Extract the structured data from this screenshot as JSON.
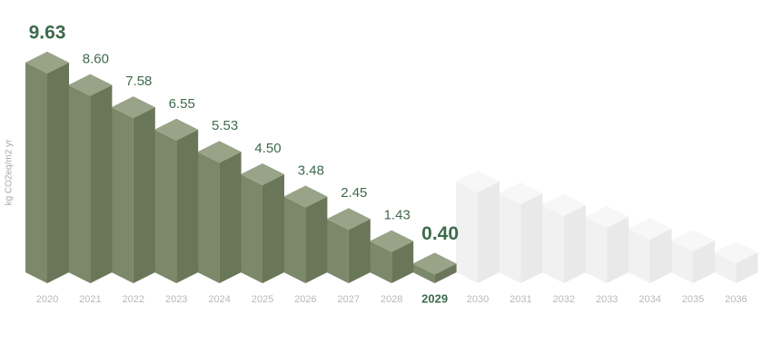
{
  "chart_data": {
    "type": "bar3d",
    "y_label": "kg CO2eq/m2 yr",
    "categories": [
      "2020",
      "2021",
      "2022",
      "2023",
      "2024",
      "2025",
      "2026",
      "2027",
      "2028",
      "2029",
      "2030",
      "2031",
      "2032",
      "2033",
      "2034",
      "2035",
      "2036"
    ],
    "values": [
      9.63,
      8.6,
      7.58,
      6.55,
      5.53,
      4.5,
      3.48,
      2.45,
      1.43,
      0.4,
      null,
      null,
      null,
      null,
      null,
      null,
      null
    ],
    "value_labels": [
      "9.63",
      "8.60",
      "7.58",
      "6.55",
      "5.53",
      "4.50",
      "3.48",
      "2.45",
      "1.43",
      "0.40",
      null,
      null,
      null,
      null,
      null,
      null,
      null
    ],
    "highlight": [
      0,
      9
    ],
    "color": "#7b8869",
    "ylim": [
      0,
      10
    ]
  }
}
